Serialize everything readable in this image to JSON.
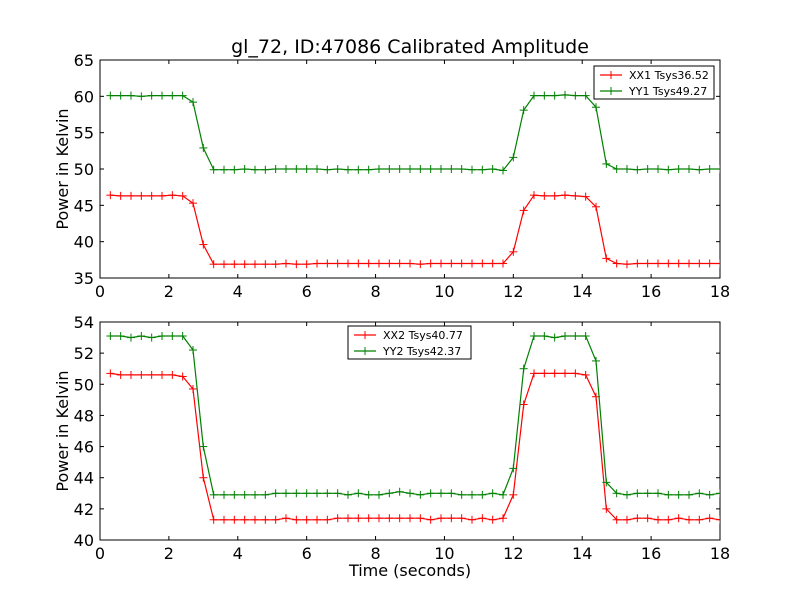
{
  "chart_data": {
    "type": "line",
    "title": "gl_72, ID:47086 Calibrated Amplitude",
    "xlabel": "Time (seconds)",
    "panels": [
      {
        "ylabel": "Power in Kelvin",
        "xlim": [
          0,
          18
        ],
        "ylim": [
          35,
          65
        ],
        "xticks": [
          "0",
          "2",
          "4",
          "6",
          "8",
          "10",
          "12",
          "14",
          "16",
          "18"
        ],
        "yticks": [
          "35",
          "40",
          "45",
          "50",
          "55",
          "60",
          "65"
        ],
        "legend_position": "top-right",
        "series": [
          {
            "name": "XX1 Tsys36.52",
            "color": "#ff0000",
            "x": [
              0.3,
              0.6,
              0.9,
              1.2,
              1.5,
              1.8,
              2.1,
              2.4,
              2.7,
              3.0,
              3.3,
              3.6,
              3.9,
              4.2,
              4.5,
              4.8,
              5.1,
              5.4,
              5.7,
              6.0,
              6.3,
              6.6,
              6.9,
              7.2,
              7.5,
              7.8,
              8.1,
              8.4,
              8.7,
              9.0,
              9.3,
              9.6,
              9.9,
              10.2,
              10.5,
              10.8,
              11.1,
              11.4,
              11.7,
              12.0,
              12.3,
              12.6,
              12.9,
              13.2,
              13.5,
              13.8,
              14.1,
              14.4,
              14.7,
              15.0,
              15.3,
              15.6,
              15.9,
              16.2,
              16.5,
              16.8,
              17.1,
              17.4,
              17.7,
              18.0
            ],
            "y": [
              46.4,
              46.3,
              46.3,
              46.3,
              46.3,
              46.3,
              46.4,
              46.3,
              45.3,
              39.6,
              36.9,
              36.9,
              36.9,
              36.9,
              36.9,
              36.9,
              36.9,
              37.0,
              36.9,
              36.9,
              37.0,
              37.0,
              37.0,
              37.0,
              37.0,
              37.0,
              37.0,
              37.0,
              37.0,
              37.0,
              36.9,
              37.0,
              37.0,
              37.0,
              37.0,
              37.0,
              37.0,
              37.0,
              37.0,
              38.6,
              44.3,
              46.4,
              46.3,
              46.3,
              46.4,
              46.3,
              46.2,
              44.8,
              37.7,
              37.0,
              36.9,
              37.0,
              37.0,
              37.0,
              37.0,
              37.0,
              37.0,
              37.0,
              37.0,
              37.0
            ]
          },
          {
            "name": "YY1 Tsys49.27",
            "color": "#008000",
            "x": [
              0.3,
              0.6,
              0.9,
              1.2,
              1.5,
              1.8,
              2.1,
              2.4,
              2.7,
              3.0,
              3.3,
              3.6,
              3.9,
              4.2,
              4.5,
              4.8,
              5.1,
              5.4,
              5.7,
              6.0,
              6.3,
              6.6,
              6.9,
              7.2,
              7.5,
              7.8,
              8.1,
              8.4,
              8.7,
              9.0,
              9.3,
              9.6,
              9.9,
              10.2,
              10.5,
              10.8,
              11.1,
              11.4,
              11.7,
              12.0,
              12.3,
              12.6,
              12.9,
              13.2,
              13.5,
              13.8,
              14.1,
              14.4,
              14.7,
              15.0,
              15.3,
              15.6,
              15.9,
              16.2,
              16.5,
              16.8,
              17.1,
              17.4,
              17.7,
              18.0
            ],
            "y": [
              60.1,
              60.1,
              60.1,
              60.0,
              60.1,
              60.1,
              60.1,
              60.1,
              59.2,
              52.9,
              49.9,
              49.9,
              49.9,
              50.0,
              49.9,
              49.9,
              50.0,
              50.0,
              50.0,
              50.0,
              50.0,
              49.9,
              50.0,
              49.9,
              49.9,
              49.9,
              50.0,
              50.0,
              50.0,
              50.0,
              50.0,
              50.0,
              50.0,
              50.0,
              50.0,
              49.9,
              49.9,
              50.0,
              49.8,
              51.6,
              58.1,
              60.1,
              60.1,
              60.1,
              60.2,
              60.1,
              60.1,
              58.5,
              50.7,
              50.0,
              50.0,
              49.9,
              50.0,
              50.0,
              49.9,
              50.0,
              50.0,
              49.9,
              50.0,
              50.0
            ]
          }
        ]
      },
      {
        "ylabel": "Power in Kelvin",
        "xlim": [
          0,
          18
        ],
        "ylim": [
          40,
          54
        ],
        "xticks": [
          "0",
          "2",
          "4",
          "6",
          "8",
          "10",
          "12",
          "14",
          "16",
          "18"
        ],
        "yticks": [
          "40",
          "42",
          "44",
          "46",
          "48",
          "50",
          "52",
          "54"
        ],
        "legend_position": "top-center",
        "series": [
          {
            "name": "XX2 Tsys40.77",
            "color": "#ff0000",
            "x": [
              0.3,
              0.6,
              0.9,
              1.2,
              1.5,
              1.8,
              2.1,
              2.4,
              2.7,
              3.0,
              3.3,
              3.6,
              3.9,
              4.2,
              4.5,
              4.8,
              5.1,
              5.4,
              5.7,
              6.0,
              6.3,
              6.6,
              6.9,
              7.2,
              7.5,
              7.8,
              8.1,
              8.4,
              8.7,
              9.0,
              9.3,
              9.6,
              9.9,
              10.2,
              10.5,
              10.8,
              11.1,
              11.4,
              11.7,
              12.0,
              12.3,
              12.6,
              12.9,
              13.2,
              13.5,
              13.8,
              14.1,
              14.4,
              14.7,
              15.0,
              15.3,
              15.6,
              15.9,
              16.2,
              16.5,
              16.8,
              17.1,
              17.4,
              17.7,
              18.0
            ],
            "y": [
              50.7,
              50.6,
              50.6,
              50.6,
              50.6,
              50.6,
              50.6,
              50.5,
              49.7,
              44.0,
              41.3,
              41.3,
              41.3,
              41.3,
              41.3,
              41.3,
              41.3,
              41.4,
              41.3,
              41.3,
              41.3,
              41.3,
              41.4,
              41.4,
              41.4,
              41.4,
              41.4,
              41.4,
              41.4,
              41.4,
              41.4,
              41.3,
              41.4,
              41.4,
              41.4,
              41.3,
              41.4,
              41.3,
              41.4,
              42.9,
              48.7,
              50.7,
              50.7,
              50.7,
              50.7,
              50.7,
              50.6,
              49.2,
              42.0,
              41.3,
              41.3,
              41.4,
              41.4,
              41.3,
              41.3,
              41.4,
              41.3,
              41.3,
              41.4,
              41.3
            ]
          },
          {
            "name": "YY2 Tsys42.37",
            "color": "#008000",
            "x": [
              0.3,
              0.6,
              0.9,
              1.2,
              1.5,
              1.8,
              2.1,
              2.4,
              2.7,
              3.0,
              3.3,
              3.6,
              3.9,
              4.2,
              4.5,
              4.8,
              5.1,
              5.4,
              5.7,
              6.0,
              6.3,
              6.6,
              6.9,
              7.2,
              7.5,
              7.8,
              8.1,
              8.4,
              8.7,
              9.0,
              9.3,
              9.6,
              9.9,
              10.2,
              10.5,
              10.8,
              11.1,
              11.4,
              11.7,
              12.0,
              12.3,
              12.6,
              12.9,
              13.2,
              13.5,
              13.8,
              14.1,
              14.4,
              14.7,
              15.0,
              15.3,
              15.6,
              15.9,
              16.2,
              16.5,
              16.8,
              17.1,
              17.4,
              17.7,
              18.0
            ],
            "y": [
              53.1,
              53.1,
              53.0,
              53.1,
              53.0,
              53.1,
              53.1,
              53.1,
              52.2,
              46.0,
              42.9,
              42.9,
              42.9,
              42.9,
              42.9,
              42.9,
              43.0,
              43.0,
              43.0,
              43.0,
              43.0,
              43.0,
              43.0,
              42.9,
              43.0,
              42.9,
              42.9,
              43.0,
              43.1,
              43.0,
              42.9,
              43.0,
              43.0,
              43.0,
              42.9,
              42.9,
              42.9,
              43.0,
              42.9,
              44.6,
              51.0,
              53.1,
              53.1,
              53.0,
              53.1,
              53.1,
              53.1,
              51.5,
              43.7,
              43.0,
              42.9,
              43.0,
              43.0,
              43.0,
              42.9,
              42.9,
              42.9,
              43.0,
              42.9,
              43.0
            ]
          }
        ]
      }
    ]
  }
}
